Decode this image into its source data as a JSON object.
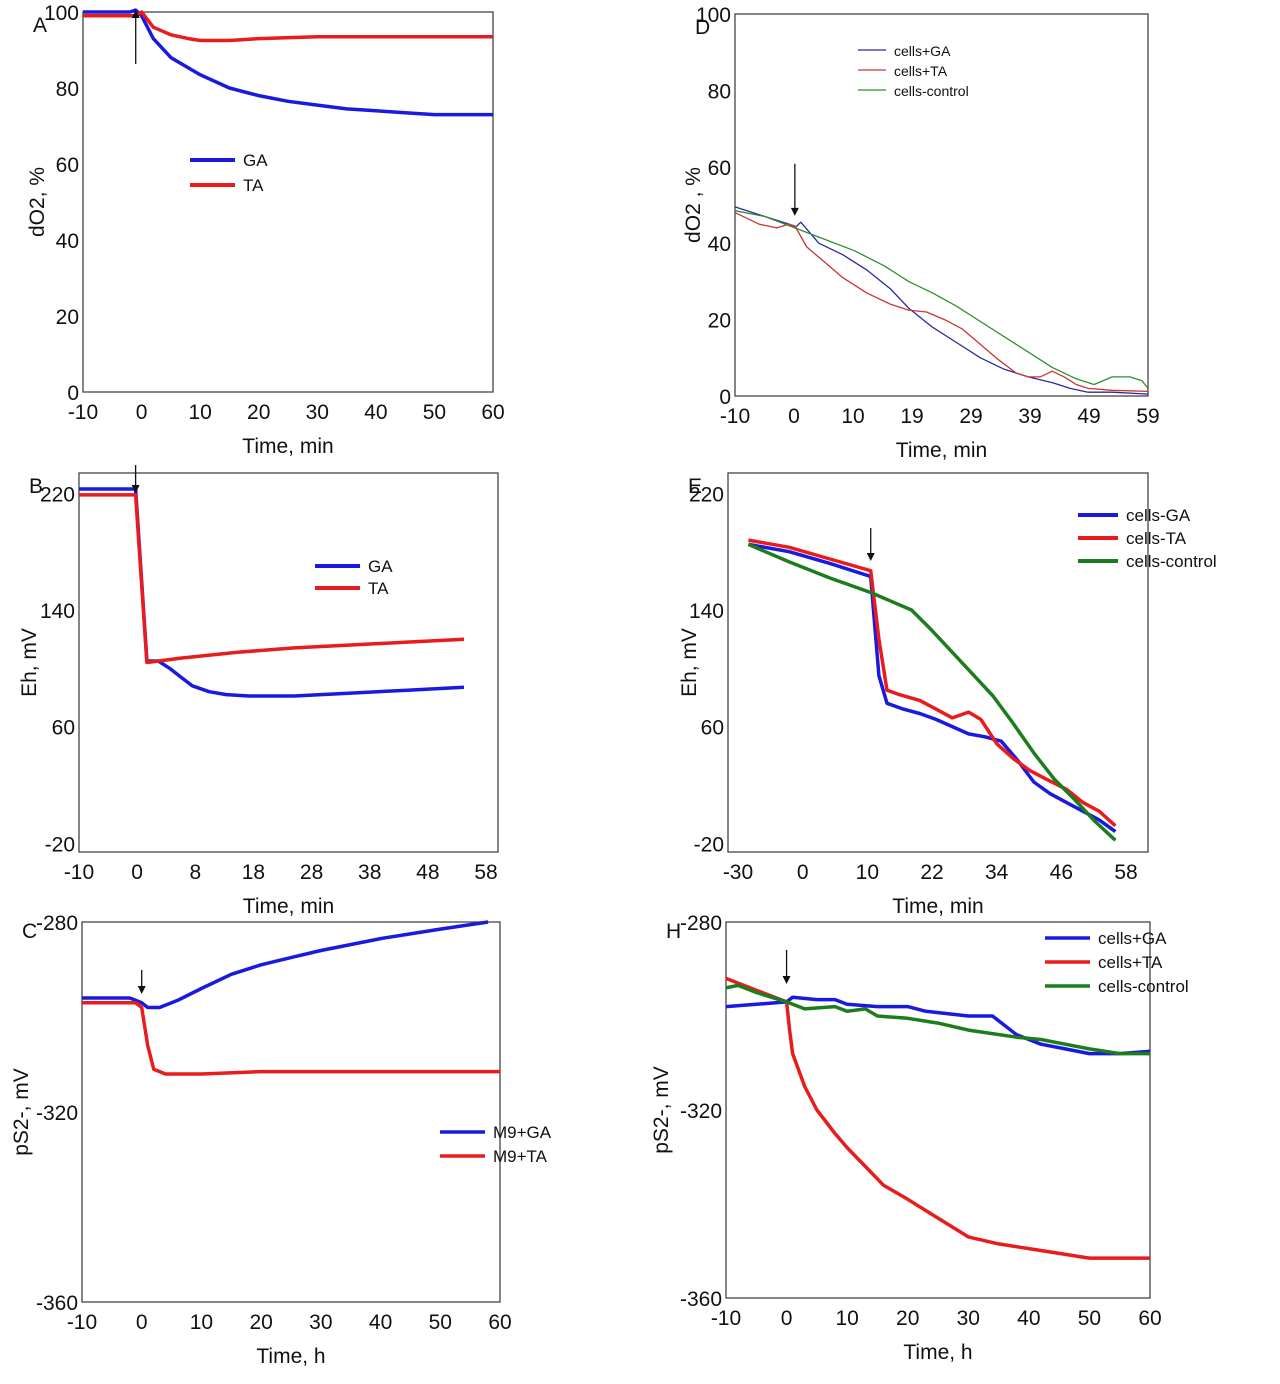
{
  "chart_data": [
    {
      "panel": "A",
      "type": "line",
      "xlabel": "Time, min",
      "ylabel": "dO2, %",
      "xlim": [
        -10,
        60
      ],
      "ylim": [
        0,
        100
      ],
      "xticks": [
        "-10",
        "0",
        "10",
        "20",
        "30",
        "40",
        "50",
        "60"
      ],
      "yticks": [
        "0",
        "20",
        "40",
        "60",
        "80",
        "100"
      ],
      "legend": "center-left",
      "annotation": "arrow at t=-1 (addition)",
      "series": [
        {
          "name": "GA",
          "color": "#1a1adf",
          "x": [
            -10,
            -2,
            -1,
            0,
            2,
            5,
            10,
            15,
            20,
            25,
            30,
            35,
            40,
            45,
            50,
            55,
            60
          ],
          "y": [
            100,
            100,
            100.5,
            99,
            93,
            88,
            83.5,
            80,
            78,
            76.5,
            75.5,
            74.5,
            74,
            73.5,
            73,
            73,
            73
          ]
        },
        {
          "name": "TA",
          "color": "#e81c1c",
          "x": [
            -10,
            -1,
            0,
            2,
            5,
            8,
            10,
            15,
            20,
            30,
            40,
            50,
            60
          ],
          "y": [
            99,
            99,
            100,
            96,
            94,
            93,
            92.5,
            92.5,
            93,
            93.5,
            93.5,
            93.5,
            93.5
          ]
        }
      ]
    },
    {
      "panel": "D",
      "type": "line",
      "xlabel": "Time, min",
      "ylabel": "dO2 , %",
      "xlim": [
        -10,
        59
      ],
      "ylim": [
        0,
        100
      ],
      "xticks": [
        "-10",
        "0",
        "10",
        "19",
        "29",
        "39",
        "49",
        "59"
      ],
      "yticks": [
        "0",
        "20",
        "40",
        "60",
        "80",
        "100"
      ],
      "legend": "top-left",
      "annotation": "arrow at t=0",
      "series": [
        {
          "name": "cells+GA",
          "color": "#2b2b9c",
          "x": [
            -10,
            -5,
            -1,
            0,
            1,
            4,
            8,
            12,
            16,
            19,
            23,
            27,
            31,
            35,
            39,
            43,
            46,
            49,
            53,
            59
          ],
          "y": [
            49.5,
            47,
            45,
            44,
            45.5,
            40,
            37,
            33,
            28,
            23,
            18,
            14,
            10,
            7,
            5,
            3.5,
            2,
            1,
            1,
            0.5
          ]
        },
        {
          "name": "cells+TA",
          "color": "#cc3333",
          "x": [
            -10,
            -6,
            -3,
            -1,
            0,
            2,
            5,
            8,
            12,
            16,
            19,
            22,
            25,
            28,
            31,
            34,
            37,
            39,
            41,
            43,
            45,
            47,
            49,
            53,
            59
          ],
          "y": [
            48,
            45,
            44,
            45,
            44.5,
            39,
            35,
            31,
            27,
            24,
            22.5,
            22,
            20,
            17.5,
            13.5,
            9.5,
            6,
            5,
            5,
            6.5,
            5,
            3,
            2,
            1.5,
            1.2
          ]
        },
        {
          "name": "cells-control",
          "color": "#2f8f2f",
          "x": [
            -10,
            -5,
            0,
            5,
            10,
            15,
            19,
            23,
            27,
            31,
            35,
            39,
            43,
            47,
            50,
            53,
            56,
            58,
            59
          ],
          "y": [
            48.5,
            47,
            44,
            41,
            38,
            34,
            30,
            27,
            23.5,
            19.5,
            15.5,
            11.5,
            7.5,
            4.5,
            3,
            5,
            5,
            4,
            2
          ]
        }
      ]
    },
    {
      "panel": "B",
      "type": "line",
      "xlabel": "Time, min",
      "ylabel": "Eh, mV",
      "xlim": [
        -10,
        64
      ],
      "ylim": [
        -26,
        234
      ],
      "xticks": [
        "-10",
        "0",
        "8",
        "18",
        "28",
        "38",
        "48",
        "58"
      ],
      "ytick_values": [
        -20,
        60,
        140,
        220
      ],
      "yticks": [
        "-20",
        "60",
        "140",
        "220"
      ],
      "legend": "top-center",
      "annotation": "arrow at t=0",
      "series": [
        {
          "name": "GA",
          "color": "#1a1adf",
          "x": [
            -10,
            0,
            2,
            4,
            6,
            8,
            10,
            13,
            16,
            20,
            28,
            38,
            48,
            58
          ],
          "y": [
            223,
            223,
            105,
            105,
            100,
            94,
            88,
            84,
            82,
            81,
            81,
            83,
            85,
            87
          ]
        },
        {
          "name": "TA",
          "color": "#e81c1c",
          "x": [
            -10,
            0,
            2,
            8,
            18,
            28,
            38,
            48,
            58
          ],
          "y": [
            219,
            219,
            104,
            107,
            111,
            114,
            116,
            118,
            120
          ]
        }
      ]
    },
    {
      "panel": "E",
      "type": "line",
      "xlabel": "Time, min",
      "ylabel": "Eh, mV",
      "xlim": [
        -35,
        68
      ],
      "ylim": [
        -26,
        234
      ],
      "xticks": [
        "-30",
        "0",
        "10",
        "22",
        "34",
        "46",
        "58"
      ],
      "ytick_values": [
        -20,
        60,
        140,
        220
      ],
      "yticks": [
        "-20",
        "60",
        "140",
        "220"
      ],
      "legend": "top-right",
      "annotation": "arrow at t=0",
      "series": [
        {
          "name": "cells-GA",
          "color": "#1a1adf",
          "x": [
            -30,
            -20,
            -10,
            0,
            2,
            4,
            8,
            12,
            16,
            20,
            24,
            28,
            32,
            36,
            40,
            44,
            48,
            52,
            56,
            60
          ],
          "y": [
            185,
            180,
            172,
            163,
            95,
            76,
            72,
            69,
            65,
            60,
            55,
            53,
            50,
            37,
            22,
            14,
            8,
            2,
            -4,
            -12
          ]
        },
        {
          "name": "cells-TA",
          "color": "#e81c1c",
          "x": [
            -30,
            -20,
            -10,
            0,
            2,
            4,
            7,
            12,
            16,
            20,
            24,
            27,
            31,
            35,
            39,
            43,
            48,
            52,
            56,
            60
          ],
          "y": [
            188,
            183,
            175,
            167,
            120,
            85,
            82,
            78,
            72,
            66,
            70,
            65,
            48,
            38,
            30,
            24,
            17,
            8,
            2,
            -8
          ]
        },
        {
          "name": "cells-control",
          "color": "#1d7d1d",
          "x": [
            -30,
            -20,
            -10,
            0,
            10,
            15,
            20,
            25,
            30,
            35,
            40,
            45,
            50,
            55,
            60
          ],
          "y": [
            185,
            173,
            162,
            152,
            140,
            126,
            111,
            96,
            81,
            62,
            42,
            24,
            10,
            -5,
            -18
          ]
        }
      ]
    },
    {
      "panel": "C",
      "type": "line",
      "xlabel": "Time, h",
      "ylabel": "pS2-, mV",
      "xlim": [
        -10,
        60
      ],
      "ylim": [
        -360,
        -280
      ],
      "xticks": [
        "-10",
        "0",
        "10",
        "20",
        "30",
        "40",
        "50",
        "60"
      ],
      "ytick_values": [
        -360,
        -320,
        -280
      ],
      "yticks": [
        "-360",
        "-320",
        "-280"
      ],
      "legend": "bottom-right",
      "annotation": "arrow at t=0",
      "series": [
        {
          "name": "M9+GA",
          "color": "#1a1adf",
          "x": [
            -10,
            -2,
            0,
            1,
            3,
            6,
            10,
            15,
            20,
            25,
            30,
            40,
            50,
            58
          ],
          "y": [
            -296,
            -296,
            -297,
            -298,
            -298,
            -296.5,
            -294,
            -291,
            -289,
            -287.5,
            -286,
            -283.5,
            -281.5,
            -280
          ]
        },
        {
          "name": "M9+TA",
          "color": "#e81c1c",
          "x": [
            -10,
            -1,
            0,
            1,
            2,
            4,
            10,
            20,
            30,
            40,
            50,
            60
          ],
          "y": [
            -297,
            -297,
            -298,
            -306,
            -311,
            -312,
            -312,
            -311.5,
            -311.5,
            -311.5,
            -311.5,
            -311.5
          ]
        }
      ]
    },
    {
      "panel": "H",
      "type": "line",
      "xlabel": "Time, h",
      "ylabel": "pS2-, mV",
      "xlim": [
        -10,
        60
      ],
      "ylim": [
        -360,
        -280
      ],
      "xticks": [
        "-10",
        "0",
        "10",
        "20",
        "30",
        "40",
        "50",
        "60"
      ],
      "ytick_values": [
        -360,
        -320,
        -280
      ],
      "yticks": [
        "-360",
        "-320",
        "-280"
      ],
      "legend": "top-right",
      "annotation": "arrow at t=0",
      "series": [
        {
          "name": "cells+GA",
          "color": "#1a1adf",
          "x": [
            -10,
            -5,
            0,
            1,
            5,
            8,
            10,
            15,
            20,
            23,
            30,
            34,
            38,
            42,
            46,
            50,
            55,
            60
          ],
          "y": [
            -298,
            -297.5,
            -297,
            -296,
            -296.5,
            -296.5,
            -297.5,
            -298,
            -298,
            -299,
            -300,
            -300,
            -304,
            -306,
            -307,
            -308,
            -308,
            -307.5
          ]
        },
        {
          "name": "cells+TA",
          "color": "#e81c1c",
          "x": [
            -10,
            -5,
            0,
            0.5,
            1,
            3,
            5,
            8,
            10,
            13,
            16,
            20,
            25,
            30,
            35,
            40,
            45,
            50,
            55,
            60
          ],
          "y": [
            -292,
            -294.5,
            -297,
            -303,
            -308,
            -315,
            -320,
            -325,
            -328,
            -332,
            -336,
            -339,
            -343,
            -347,
            -348.5,
            -349.5,
            -350.5,
            -351.5,
            -351.5,
            -351.5
          ]
        },
        {
          "name": "cells-control",
          "color": "#1d7d1d",
          "x": [
            -10,
            -8,
            -5,
            0,
            3,
            8,
            10,
            13,
            15,
            20,
            25,
            30,
            38,
            42,
            46,
            50,
            55,
            60
          ],
          "y": [
            -294,
            -293.5,
            -295,
            -297,
            -298.5,
            -298,
            -299,
            -298.5,
            -300,
            -300.5,
            -301.5,
            -303,
            -304.5,
            -305,
            -306,
            -307,
            -308,
            -308
          ]
        }
      ]
    }
  ]
}
